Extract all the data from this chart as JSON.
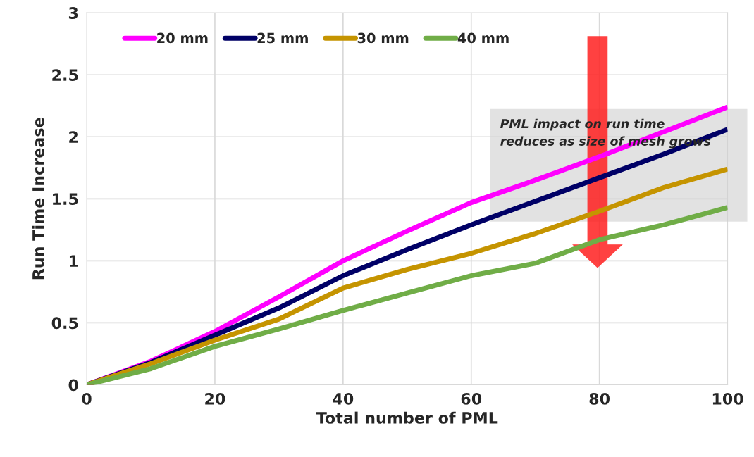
{
  "chart_data": {
    "type": "line",
    "xlabel": "Total number of PML",
    "ylabel": "Run Time Increase",
    "x": [
      0,
      10,
      20,
      30,
      40,
      50,
      60,
      70,
      80,
      90,
      100
    ],
    "series": [
      {
        "name": "20 mm",
        "color": "#ff00ff",
        "values": [
          0,
          0.19,
          0.43,
          0.71,
          1.0,
          1.24,
          1.47,
          1.65,
          1.84,
          2.04,
          2.24
        ]
      },
      {
        "name": "25 mm",
        "color": "#000066",
        "values": [
          0,
          0.18,
          0.4,
          0.62,
          0.88,
          1.09,
          1.29,
          1.48,
          1.67,
          1.86,
          2.06
        ]
      },
      {
        "name": "30 mm",
        "color": "#c59400",
        "values": [
          0,
          0.17,
          0.36,
          0.53,
          0.78,
          0.93,
          1.06,
          1.22,
          1.4,
          1.59,
          1.74
        ]
      },
      {
        "name": "40 mm",
        "color": "#70ad47",
        "values": [
          0,
          0.13,
          0.31,
          0.45,
          0.6,
          0.74,
          0.88,
          0.98,
          1.17,
          1.29,
          1.43
        ]
      }
    ],
    "xlim": [
      0,
      100
    ],
    "xticks": [
      0,
      20,
      40,
      60,
      80,
      100
    ],
    "ylim": [
      0,
      3
    ],
    "yticks": [
      0,
      0.5,
      1,
      1.5,
      2,
      2.5,
      3
    ],
    "grid": true,
    "legend": "top left",
    "marker": "none",
    "line_style": "solid",
    "annotations": [
      "PML impact on run time\nreduces as size of mesh grows"
    ]
  }
}
